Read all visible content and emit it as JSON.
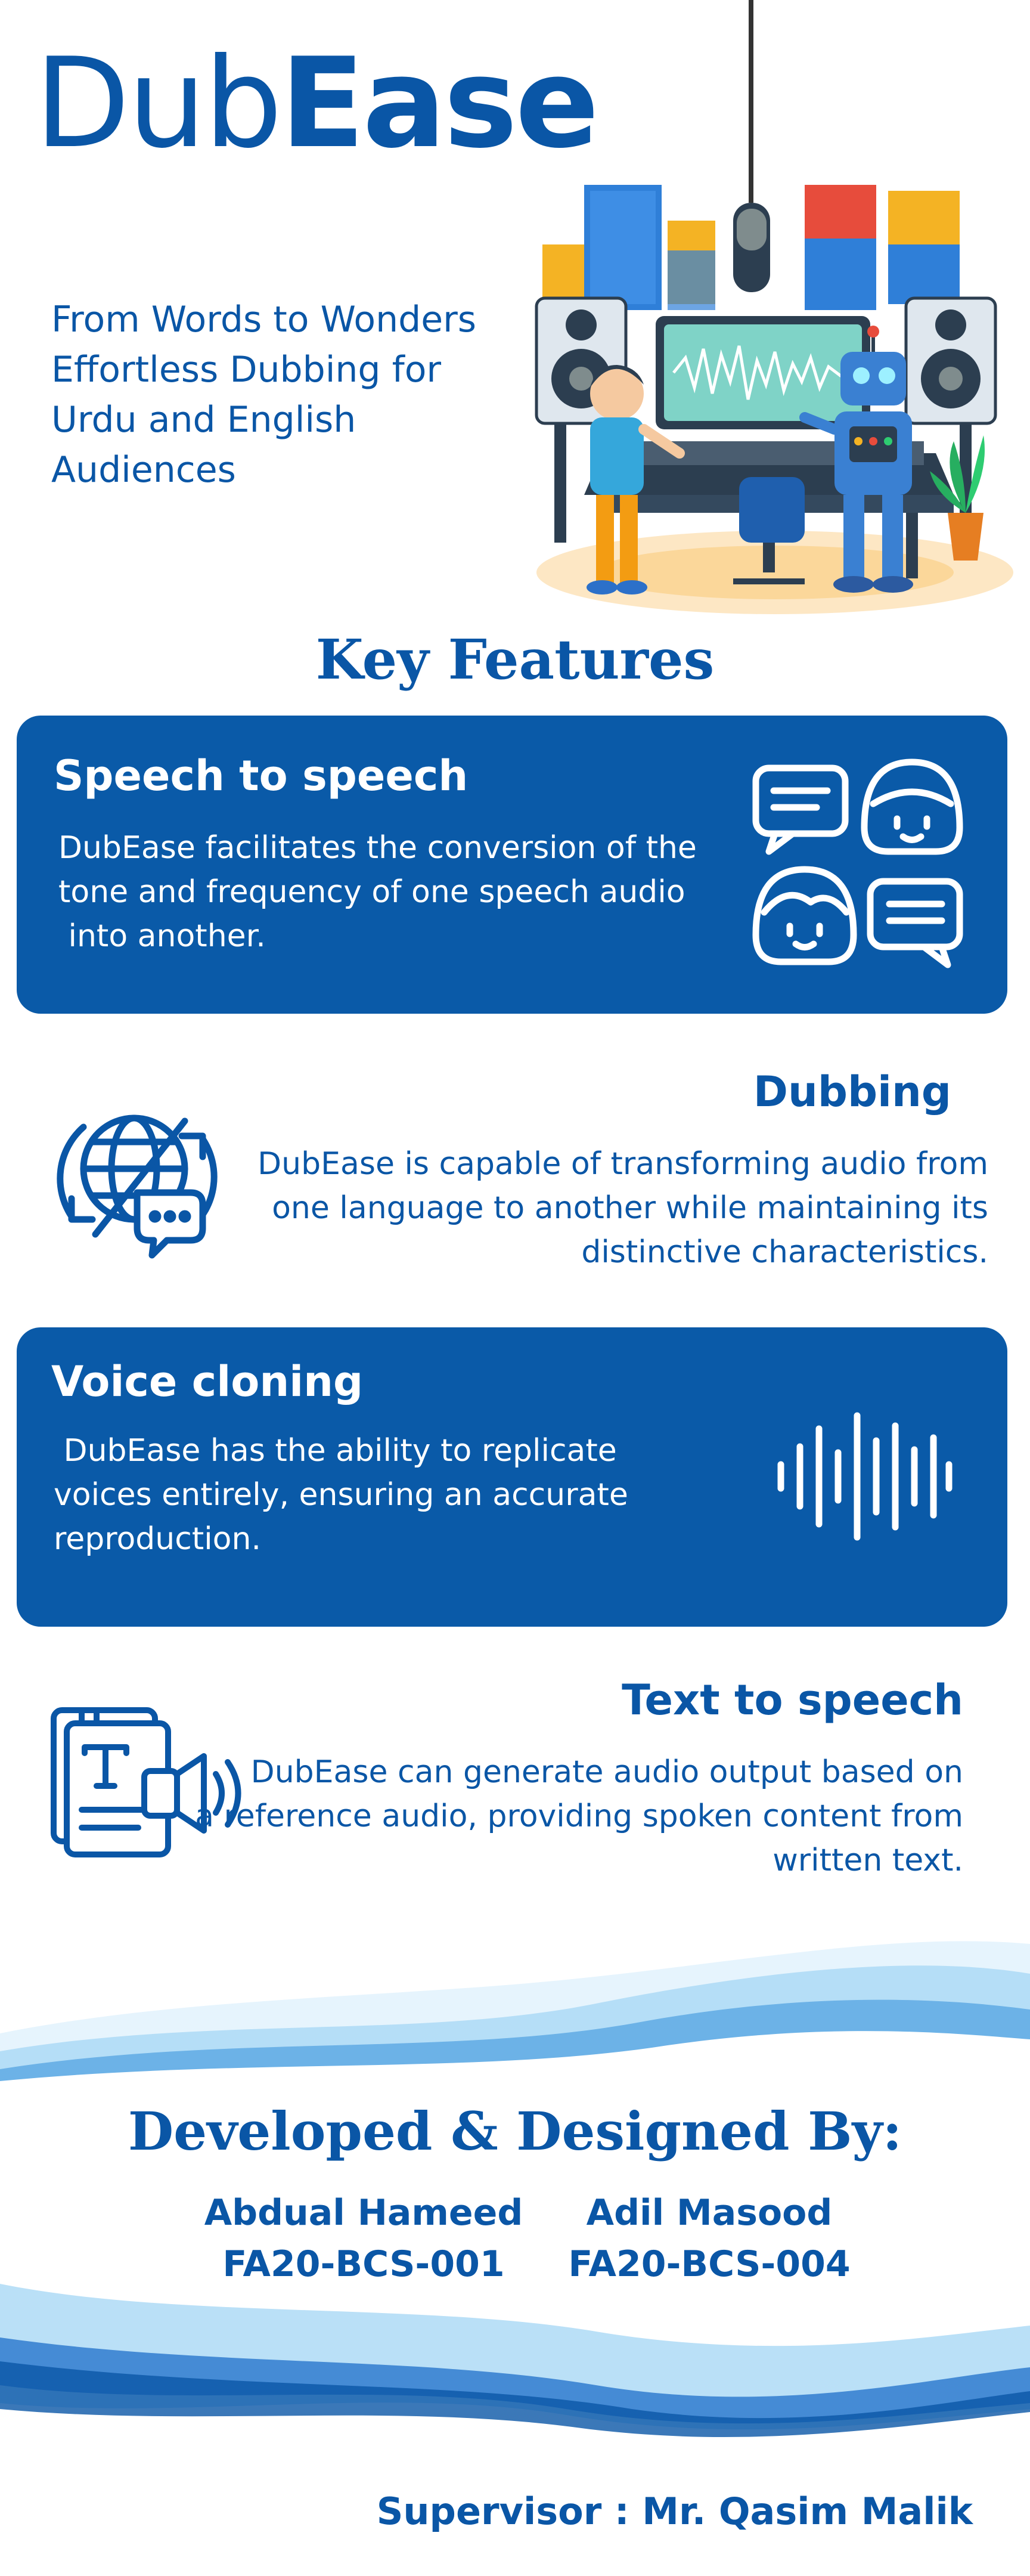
{
  "brand": {
    "name_part1": "Dub",
    "name_part2": "Ease"
  },
  "tagline": [
    "From Words to Wonders",
    "Effortless Dubbing for",
    "Urdu and English",
    "Audiences"
  ],
  "key_features_title": "Key Features",
  "features": [
    {
      "title": "Speech to speech",
      "lines": [
        "DubEase facilitates the conversion of the",
        "tone and frequency of one speech audio",
        " into another."
      ],
      "icon": "chat-faces-icon"
    },
    {
      "title": "Dubbing",
      "lines": [
        "DubEase is capable of transforming audio from",
        "one language to another while maintaining its",
        "distinctive characteristics."
      ],
      "icon": "globe-translate-icon"
    },
    {
      "title": "Voice cloning",
      "lines": [
        " DubEase has the ability to replicate",
        "voices entirely, ensuring an accurate",
        "reproduction."
      ],
      "icon": "soundwave-icon"
    },
    {
      "title": "Text to speech",
      "lines": [
        "DubEase can generate audio output based on",
        "a reference audio, providing spoken content from",
        "written text."
      ],
      "icon": "text-speaker-icon"
    }
  ],
  "developers_title": "Developed & Designed By:",
  "developers": [
    {
      "name": "Abdual Hameed",
      "id": "FA20-BCS-001"
    },
    {
      "name": "Adil Masood",
      "id": "FA20-BCS-004"
    }
  ],
  "supervisor": "Supervisor : Mr. Qasim Malik",
  "colors": {
    "primary": "#0a56a6",
    "card": "#0a5aa8",
    "background": "#ffffff",
    "wave_light": "#a9d8f5"
  }
}
